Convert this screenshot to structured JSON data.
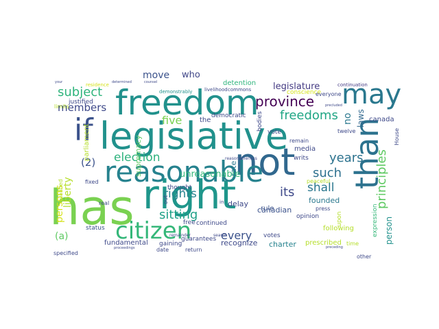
{
  "word_cloud": {
    "palette": {
      "background": "#ffffff",
      "deep_purple": "#440154",
      "blue_purple": "#3b528b",
      "teal": "#21918c",
      "green": "#5ec962",
      "lime": "#b5de2b",
      "yellow": "#d6e61a"
    },
    "words": [
      {
        "text": "has",
        "color": "#7ad151",
        "rot": 0
      },
      {
        "text": "right",
        "color": "#1f968b",
        "rot": 0
      },
      {
        "text": "legislative",
        "color": "#21918c",
        "rot": 0
      },
      {
        "text": "freedom",
        "color": "#21918c",
        "rot": 0
      },
      {
        "text": "not",
        "color": "#31688e",
        "rot": 0
      },
      {
        "text": "than",
        "color": "#2c728e",
        "rot": 90
      },
      {
        "text": "reasonable",
        "color": "#26828e",
        "rot": 0
      },
      {
        "text": "may",
        "color": "#2a788e",
        "rot": 0
      },
      {
        "text": "if",
        "color": "#3b528b",
        "rot": 0
      },
      {
        "text": "citizen",
        "color": "#35b779",
        "rot": 0
      },
      {
        "text": "province",
        "color": "#440154",
        "rot": 0
      },
      {
        "text": "principles",
        "color": "#5ec962",
        "rot": 90
      },
      {
        "text": "freedoms",
        "color": "#21a685",
        "rot": 0
      },
      {
        "text": "subject",
        "color": "#2fb47c",
        "rot": 0
      },
      {
        "text": "members",
        "color": "#3e4989",
        "rot": 0
      },
      {
        "text": "election",
        "color": "#2db27d",
        "rot": 0
      },
      {
        "text": "sitting",
        "color": "#1fa188",
        "rot": 0
      },
      {
        "text": "rights",
        "color": "#25838e",
        "rot": 0
      },
      {
        "text": "years",
        "color": "#2c728e",
        "rot": 0
      },
      {
        "text": "shall",
        "color": "#2a778e",
        "rot": 0
      },
      {
        "text": "such",
        "color": "#2d708e",
        "rot": 0
      },
      {
        "text": "every",
        "color": "#3b528b",
        "rot": 0
      },
      {
        "text": "five",
        "color": "#7ad151",
        "rot": 0
      },
      {
        "text": "legislature",
        "color": "#443a83",
        "rot": 0
      },
      {
        "text": "its",
        "color": "#3e4989",
        "rot": 0
      },
      {
        "text": "(2)",
        "color": "#3b528b",
        "rot": 0
      },
      {
        "text": "(a)",
        "color": "#5ec962",
        "rot": 0
      },
      {
        "text": "persons",
        "color": "#d5e21a",
        "rot": 90
      },
      {
        "text": "person",
        "color": "#21918c",
        "rot": 90
      },
      {
        "text": "liberty",
        "color": "#b5de2b",
        "rot": 90
      },
      {
        "text": "no",
        "color": "#2a788e",
        "rot": 90
      },
      {
        "text": "laws",
        "color": "#31688e",
        "rot": 90
      },
      {
        "text": "move",
        "color": "#3b528b",
        "rot": 0
      },
      {
        "text": "who",
        "color": "#404688",
        "rot": 0
      },
      {
        "text": "unreasonable",
        "color": "#35b779",
        "rot": 0
      },
      {
        "text": "recognize",
        "color": "#3e4989",
        "rot": 0
      },
      {
        "text": "founded",
        "color": "#2a788e",
        "rot": 0
      },
      {
        "text": "canadian",
        "color": "#3b528b",
        "rot": 0
      },
      {
        "text": "canada",
        "color": "#3e4989",
        "rot": 0
      },
      {
        "text": "detention",
        "color": "#2fb47c",
        "rot": 0
      },
      {
        "text": "charter",
        "color": "#26828e",
        "rot": 0
      },
      {
        "text": "prescribed",
        "color": "#b5de2b",
        "rot": 0
      },
      {
        "text": "fundamental",
        "color": "#3e4989",
        "rot": 0
      },
      {
        "text": "parliament",
        "color": "#b5de2b",
        "rot": 90
      },
      {
        "text": "supremacy",
        "color": "#5ec962",
        "rot": 90
      },
      {
        "text": "democratic",
        "color": "#3e4989",
        "rot": 0
      },
      {
        "text": "justified",
        "color": "#3e4989",
        "rot": 0
      },
      {
        "text": "limits",
        "color": "#b5de2b",
        "rot": 0
      },
      {
        "text": "demonstrably",
        "color": "#21918c",
        "rot": 0
      },
      {
        "text": "commons",
        "color": "#3e4989",
        "rot": 0
      },
      {
        "text": "conscience",
        "color": "#d5e21a",
        "rot": 0
      },
      {
        "text": "continuation",
        "color": "#443a83",
        "rot": 0
      },
      {
        "text": "everyone",
        "color": "#3e4989",
        "rot": 0
      },
      {
        "text": "residence",
        "color": "#d5e21a",
        "rot": 0
      },
      {
        "text": "status",
        "color": "#3b528b",
        "rot": 0
      },
      {
        "text": "rule",
        "color": "#3b528b",
        "rot": 0
      },
      {
        "text": "press",
        "color": "#3e4989",
        "rot": 0
      },
      {
        "text": "media",
        "color": "#3e4989",
        "rot": 0
      },
      {
        "text": "writs",
        "color": "#3e4989",
        "rot": 0
      },
      {
        "text": "opinion",
        "color": "#3e4989",
        "rot": 0
      },
      {
        "text": "peaceful",
        "color": "#b5de2b",
        "rot": 0
      },
      {
        "text": "following",
        "color": "#b5de2b",
        "rot": 0
      },
      {
        "text": "expression",
        "color": "#35b779",
        "rot": 90
      },
      {
        "text": "other",
        "color": "#3e4989",
        "rot": 0
      },
      {
        "text": "time",
        "color": "#b5de2b",
        "rot": 0
      },
      {
        "text": "upon",
        "color": "#b5de2b",
        "rot": 90
      },
      {
        "text": "delay",
        "color": "#3e4989",
        "rot": 0
      },
      {
        "text": "remain",
        "color": "#3e4989",
        "rot": 0
      },
      {
        "text": "vote",
        "color": "#3e4989",
        "rot": 0
      },
      {
        "text": "votes",
        "color": "#3e4989",
        "rot": 0
      },
      {
        "text": "twelve",
        "color": "#3e4989",
        "rot": 0
      },
      {
        "text": "House",
        "color": "#3e4989",
        "rot": 90
      },
      {
        "text": "date",
        "color": "#3e4989",
        "rot": 0
      },
      {
        "text": "return",
        "color": "#3e4989",
        "rot": 0
      },
      {
        "text": "guarantees",
        "color": "#3e4989",
        "rot": 0
      },
      {
        "text": "gaining",
        "color": "#3e4989",
        "rot": 0
      },
      {
        "text": "free",
        "color": "#3e4989",
        "rot": 0
      },
      {
        "text": "continued",
        "color": "#3e4989",
        "rot": 0
      },
      {
        "text": "qualified",
        "color": "#b5de2b",
        "rot": 90
      },
      {
        "text": "specified",
        "color": "#3e4989",
        "rot": 0
      },
      {
        "text": "fixed",
        "color": "#3e4989",
        "rot": 0
      },
      {
        "text": "real",
        "color": "#3e4989",
        "rot": 0
      },
      {
        "text": "the",
        "color": "#3e4989",
        "rot": 0
      },
      {
        "text": "thought",
        "color": "#3e4989",
        "rot": 0
      },
      {
        "text": "bodies",
        "color": "#3e4989",
        "rot": 90
      },
      {
        "text": "rate",
        "color": "#2a788e",
        "rot": 90
      },
      {
        "text": "livelihood",
        "color": "#3e4989",
        "rot": 0
      },
      {
        "text": "your",
        "color": "#3e4989",
        "rot": 0
      },
      {
        "text": "determined",
        "color": "#3e4989",
        "rot": 0
      },
      {
        "text": "counsel",
        "color": "#3e4989",
        "rot": 0
      },
      {
        "text": "precluded",
        "color": "#3e4989",
        "rot": 0
      },
      {
        "text": "preceding",
        "color": "#3e4989",
        "rot": 0
      },
      {
        "text": "search",
        "color": "#3e4989",
        "rot": 0
      },
      {
        "text": "in",
        "color": "#3e4989",
        "rot": 0
      },
      {
        "text": "reasonableness",
        "color": "#3e4989",
        "rot": 0
      },
      {
        "text": "remainder",
        "color": "#3e4989",
        "rot": 0
      },
      {
        "text": "proceedings",
        "color": "#3e4989",
        "rot": 0
      },
      {
        "text": "out",
        "color": "#3e4989",
        "rot": 90
      }
    ]
  }
}
